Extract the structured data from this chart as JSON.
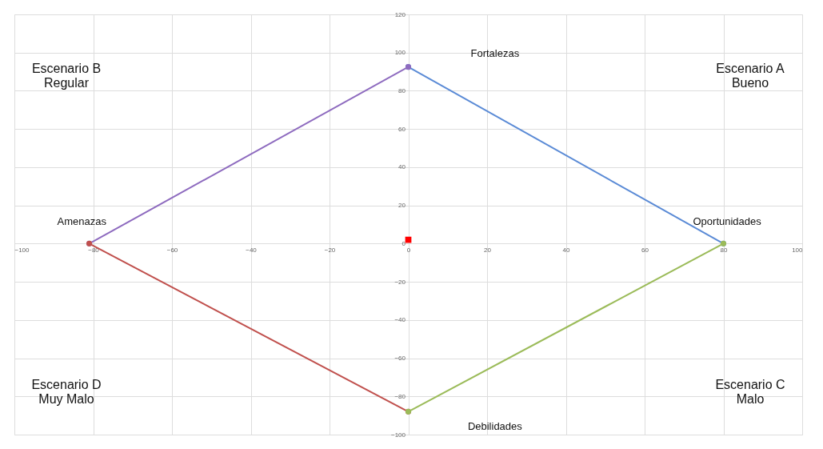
{
  "chart_data": {
    "type": "line",
    "xlim": [
      -100,
      100
    ],
    "xticks": [
      -100,
      -80,
      -60,
      -40,
      -20,
      0,
      20,
      40,
      60,
      80,
      100
    ],
    "ylim": [
      -100,
      120
    ],
    "yticks": [
      -100,
      -80,
      -60,
      -40,
      -20,
      0,
      20,
      40,
      60,
      80,
      100,
      120
    ],
    "grid": true,
    "marker": "circle",
    "line_style": "solid",
    "series": [
      {
        "color": "#5b8bd6",
        "x": [
          0,
          80
        ],
        "values": [
          92.5,
          0
        ]
      },
      {
        "color": "#8e6bbf",
        "x": [
          -81,
          0
        ],
        "values": [
          0,
          92.5
        ]
      },
      {
        "color": "#c0504d",
        "x": [
          -81,
          0
        ],
        "values": [
          0,
          -88
        ]
      },
      {
        "color": "#9bbb59",
        "x": [
          0,
          80
        ],
        "values": [
          -88,
          0
        ]
      },
      {
        "type": "scatter",
        "marker": "square",
        "color": "#ff0000",
        "x": [
          0
        ],
        "values": [
          2
        ]
      }
    ],
    "annotations": [
      {
        "text": "Oportunidades",
        "x": 80,
        "y": 0
      },
      {
        "text": "Amenazas",
        "x": -81,
        "y": 0
      },
      "Fortalezas",
      "Debilidades",
      "Escenario B\nRegular",
      "Escenario A\nBueno",
      "Escenario D\nMuy Malo",
      "Escenario C\nMalo"
    ]
  }
}
